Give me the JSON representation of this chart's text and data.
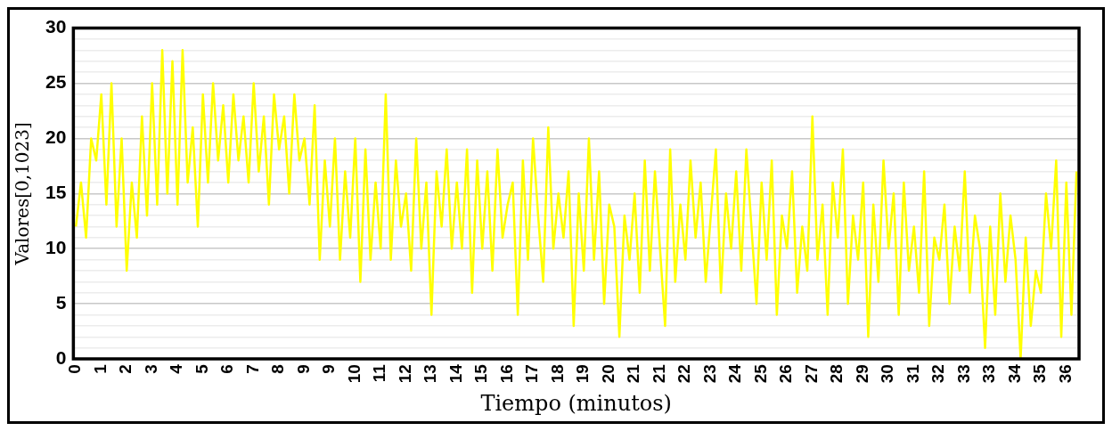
{
  "chart_data": {
    "type": "line",
    "xlabel": "Tiempo (minutos)",
    "ylabel": "Valores[0,1023]",
    "categories": [
      "0",
      null,
      null,
      null,
      null,
      "1",
      null,
      null,
      null,
      null,
      "2",
      null,
      null,
      null,
      null,
      "3",
      null,
      null,
      null,
      null,
      "4",
      null,
      null,
      null,
      null,
      "5",
      null,
      null,
      null,
      null,
      "6",
      null,
      null,
      null,
      null,
      "7",
      null,
      null,
      null,
      null,
      "8",
      null,
      null,
      null,
      null,
      "9",
      null,
      null,
      null,
      null,
      "9",
      null,
      null,
      null,
      null,
      "10",
      null,
      null,
      null,
      null,
      "11",
      null,
      null,
      null,
      null,
      "12",
      null,
      null,
      null,
      null,
      "13",
      null,
      null,
      null,
      null,
      "14",
      null,
      null,
      null,
      null,
      "15",
      null,
      null,
      null,
      null,
      "16",
      null,
      null,
      null,
      null,
      "17",
      null,
      null,
      null,
      null,
      "18",
      null,
      null,
      null,
      null,
      "19",
      null,
      null,
      null,
      null,
      "20",
      null,
      null,
      null,
      null,
      "21",
      null,
      null,
      null,
      null,
      "21",
      null,
      null,
      null,
      null,
      "22",
      null,
      null,
      null,
      null,
      "23",
      null,
      null,
      null,
      null,
      "24",
      null,
      null,
      null,
      null,
      "25",
      null,
      null,
      null,
      null,
      "26",
      null,
      null,
      null,
      null,
      "27",
      null,
      null,
      null,
      null,
      "28",
      null,
      null,
      null,
      null,
      "29",
      null,
      null,
      null,
      null,
      "30",
      null,
      null,
      null,
      null,
      "31",
      null,
      null,
      null,
      null,
      "32",
      null,
      null,
      null,
      null,
      "33",
      null,
      null,
      null,
      null,
      "33",
      null,
      null,
      null,
      null,
      "34",
      null,
      null,
      null,
      null,
      "35",
      null,
      null,
      null,
      null,
      "36",
      null,
      null
    ],
    "values": [
      12,
      16,
      11,
      20,
      18,
      24,
      14,
      25,
      12,
      20,
      8,
      16,
      11,
      22,
      13,
      25,
      14,
      28,
      15,
      27,
      14,
      28,
      16,
      21,
      12,
      24,
      16,
      25,
      18,
      23,
      16,
      24,
      18,
      22,
      16,
      25,
      17,
      22,
      14,
      24,
      19,
      22,
      15,
      24,
      18,
      20,
      14,
      23,
      9,
      18,
      12,
      20,
      9,
      17,
      11,
      20,
      7,
      19,
      9,
      16,
      10,
      24,
      9,
      18,
      12,
      15,
      8,
      20,
      10,
      16,
      4,
      17,
      12,
      19,
      10,
      16,
      10,
      19,
      6,
      18,
      10,
      17,
      8,
      19,
      11,
      14,
      16,
      4,
      18,
      9,
      20,
      13,
      7,
      21,
      10,
      15,
      11,
      17,
      3,
      15,
      8,
      20,
      9,
      17,
      5,
      14,
      12,
      2,
      13,
      9,
      15,
      6,
      18,
      8,
      17,
      10,
      3,
      19,
      7,
      14,
      9,
      18,
      11,
      16,
      7,
      13,
      19,
      6,
      15,
      10,
      17,
      8,
      19,
      12,
      5,
      16,
      9,
      18,
      4,
      13,
      10,
      17,
      6,
      12,
      8,
      22,
      9,
      14,
      4,
      16,
      11,
      19,
      5,
      13,
      9,
      16,
      2,
      14,
      7,
      18,
      10,
      15,
      4,
      16,
      8,
      12,
      6,
      17,
      3,
      11,
      9,
      14,
      5,
      12,
      8,
      17,
      6,
      13,
      10,
      1,
      12,
      4,
      15,
      7,
      13,
      9,
      0,
      11,
      3,
      8,
      6,
      15,
      10,
      18,
      2,
      16,
      4,
      17
    ],
    "color": "#ffff00",
    "ylim": [
      0,
      30
    ],
    "yticks": [
      0,
      {
        "value": 1,
        "label": null
      },
      {
        "value": 2,
        "label": null
      },
      {
        "value": 3,
        "label": null
      },
      {
        "value": 4,
        "label": null
      },
      5,
      {
        "value": 6,
        "label": null
      },
      {
        "value": 7,
        "label": null
      },
      {
        "value": 8,
        "label": null
      },
      {
        "value": 9,
        "label": null
      },
      10,
      {
        "value": 11,
        "label": null
      },
      {
        "value": 12,
        "label": null
      },
      {
        "value": 13,
        "label": null
      },
      {
        "value": 14,
        "label": null
      },
      15,
      {
        "value": 16,
        "label": null
      },
      {
        "value": 17,
        "label": null
      },
      {
        "value": 18,
        "label": null
      },
      {
        "value": 19,
        "label": null
      },
      20,
      {
        "value": 21,
        "label": null
      },
      {
        "value": 22,
        "label": null
      },
      {
        "value": 23,
        "label": null
      },
      {
        "value": 24,
        "label": null
      },
      25,
      {
        "value": 26,
        "label": null
      },
      {
        "value": 27,
        "label": null
      },
      {
        "value": 28,
        "label": null
      },
      {
        "value": 29,
        "label": null
      },
      30
    ],
    "grid": "y"
  }
}
